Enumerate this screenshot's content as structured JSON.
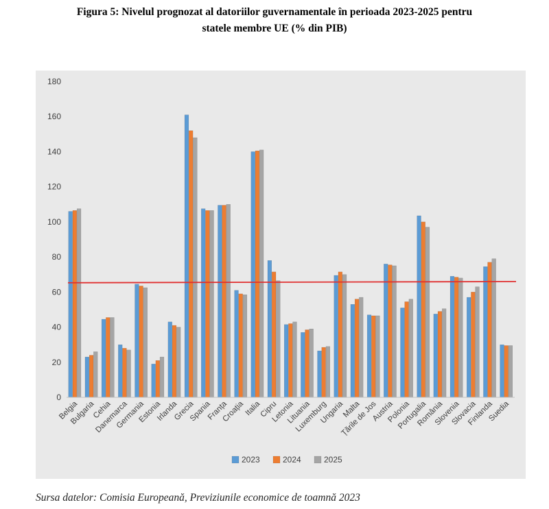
{
  "figure": {
    "title_line1": "Figura 5: Nivelul prognozat al datoriilor guvernamentale în perioada 2023-2025 pentru",
    "title_line2": "statele membre UE (% din PIB)",
    "source": "Sursa datelor: Comisia Europeană, Previziunile economice de toamnă 2023"
  },
  "chart_data": {
    "type": "bar",
    "title": "",
    "xlabel": "",
    "ylabel": "",
    "ylim": [
      0,
      180
    ],
    "yticks": [
      0,
      20,
      40,
      60,
      80,
      100,
      120,
      140,
      160,
      180
    ],
    "grid": false,
    "legend_position": "bottom",
    "categories": [
      "Belgia",
      "Bulgaria",
      "Cehia",
      "Danemarca",
      "Germania",
      "Estonia",
      "Irlanda",
      "Grecia",
      "Spania",
      "Franța",
      "Croația",
      "Italia",
      "Cipru",
      "Letonia",
      "Lituania",
      "Luxemburg",
      "Ungaria",
      "Malta",
      "Țările de Jos",
      "Austria",
      "Polonia",
      "Portugalia",
      "România",
      "Slovenia",
      "Slovacia",
      "Finlanda",
      "Suedia"
    ],
    "series": [
      {
        "name": "2023",
        "color": "#5b9bd5",
        "values": [
          106,
          23,
          44.5,
          30,
          64.5,
          19,
          43,
          161,
          107.5,
          109.5,
          61,
          140,
          78,
          41.5,
          37,
          26.5,
          69.5,
          53,
          47,
          76,
          51,
          103.5,
          47.5,
          69,
          57,
          74.5,
          30
        ]
      },
      {
        "name": "2024",
        "color": "#ed7d31",
        "values": [
          106.5,
          24,
          45.5,
          28,
          63.5,
          21,
          41,
          152,
          106.5,
          109.5,
          59,
          140.5,
          71.5,
          42,
          38.5,
          28.5,
          71.5,
          56,
          46.5,
          75.5,
          54.5,
          100,
          49,
          68.5,
          60,
          77,
          29.5
        ]
      },
      {
        "name": "2025",
        "color": "#a5a5a5",
        "values": [
          107.5,
          26,
          45.5,
          27,
          62.5,
          23,
          40,
          148,
          106.5,
          110,
          58.5,
          141,
          66.5,
          43,
          39,
          29,
          70,
          57,
          46.5,
          75,
          56,
          97,
          50.5,
          68,
          63,
          79,
          29.5
        ]
      }
    ],
    "reference_line": {
      "color": "#e03030",
      "start_value": 65.3,
      "end_value": 66.0
    }
  }
}
